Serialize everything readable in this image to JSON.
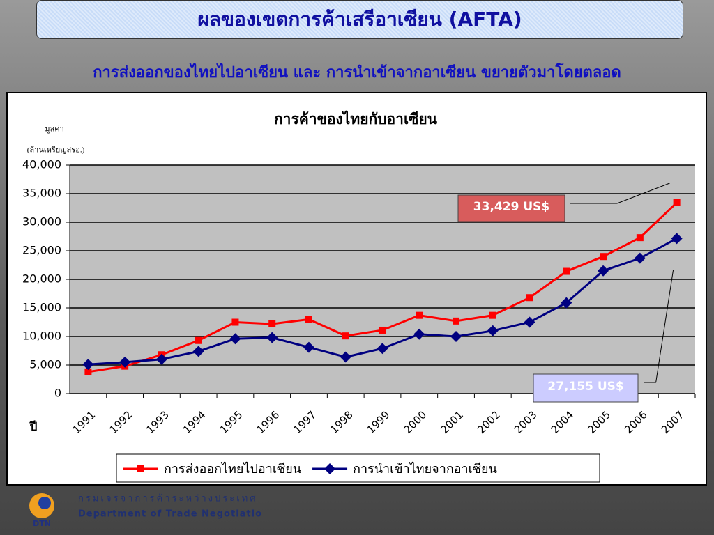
{
  "header": {
    "title": "ผลของเขตการค้าเสรีอาเซียน (AFTA)",
    "subtitle": "การส่งออกของไทยไปอาเซียน และ การนำเข้าจากอาเซียน ขยายตัวมาโดยตลอด"
  },
  "chart_data": {
    "type": "line",
    "title": "การค้าของไทยกับอาเซียน",
    "ylabel": [
      "มูลค่า",
      "(ล้านเหรียญสรอ.)"
    ],
    "xlabel": "ปี",
    "categories": [
      "1991",
      "1992",
      "1993",
      "1994",
      "1995",
      "1996",
      "1997",
      "1998",
      "1999",
      "2000",
      "2001",
      "2002",
      "2003",
      "2004",
      "2005",
      "2006",
      "2007"
    ],
    "series": [
      {
        "name": "การส่งออกไทยไปอาเซียน",
        "color": "#ff0000",
        "marker": "square",
        "values": [
          3800,
          4800,
          6800,
          9300,
          12500,
          12200,
          13000,
          10100,
          11100,
          13700,
          12700,
          13700,
          16800,
          21400,
          24000,
          27300,
          33429
        ],
        "value_labels": [
          null,
          null,
          null,
          null,
          null,
          null,
          null,
          null,
          null,
          null,
          null,
          null,
          null,
          null,
          null,
          null,
          "33,429 US$"
        ]
      },
      {
        "name": "การนำเข้าไทยจากอาเซียน",
        "color": "#000080",
        "marker": "diamond",
        "values": [
          5100,
          5500,
          6000,
          7400,
          9600,
          9800,
          8100,
          6400,
          7900,
          10400,
          10000,
          11000,
          12500,
          15900,
          21500,
          23700,
          27155
        ],
        "value_labels": [
          null,
          null,
          null,
          null,
          null,
          null,
          null,
          null,
          null,
          null,
          null,
          null,
          null,
          null,
          null,
          null,
          "27,155 US$"
        ]
      }
    ],
    "ylim": [
      0,
      40000
    ],
    "yticks": [
      0,
      {
        "value": 5000,
        "label": "5,000"
      },
      {
        "value": 10000,
        "label": "10,000"
      },
      {
        "value": 15000,
        "label": "15,000"
      },
      {
        "value": 20000,
        "label": "20,000"
      },
      {
        "value": 25000,
        "label": "25,000"
      },
      {
        "value": 30000,
        "label": "30,000"
      },
      {
        "value": 35000,
        "label": "35,000"
      },
      {
        "value": 40000,
        "label": "40,000"
      }
    ],
    "grid": true,
    "legend": "bottom"
  },
  "footer": {
    "logo": "DTN",
    "thai_name": "กรมเจรจาการค้าระหว่างประเทศ",
    "english_name": "Department of Trade Negotiations"
  }
}
